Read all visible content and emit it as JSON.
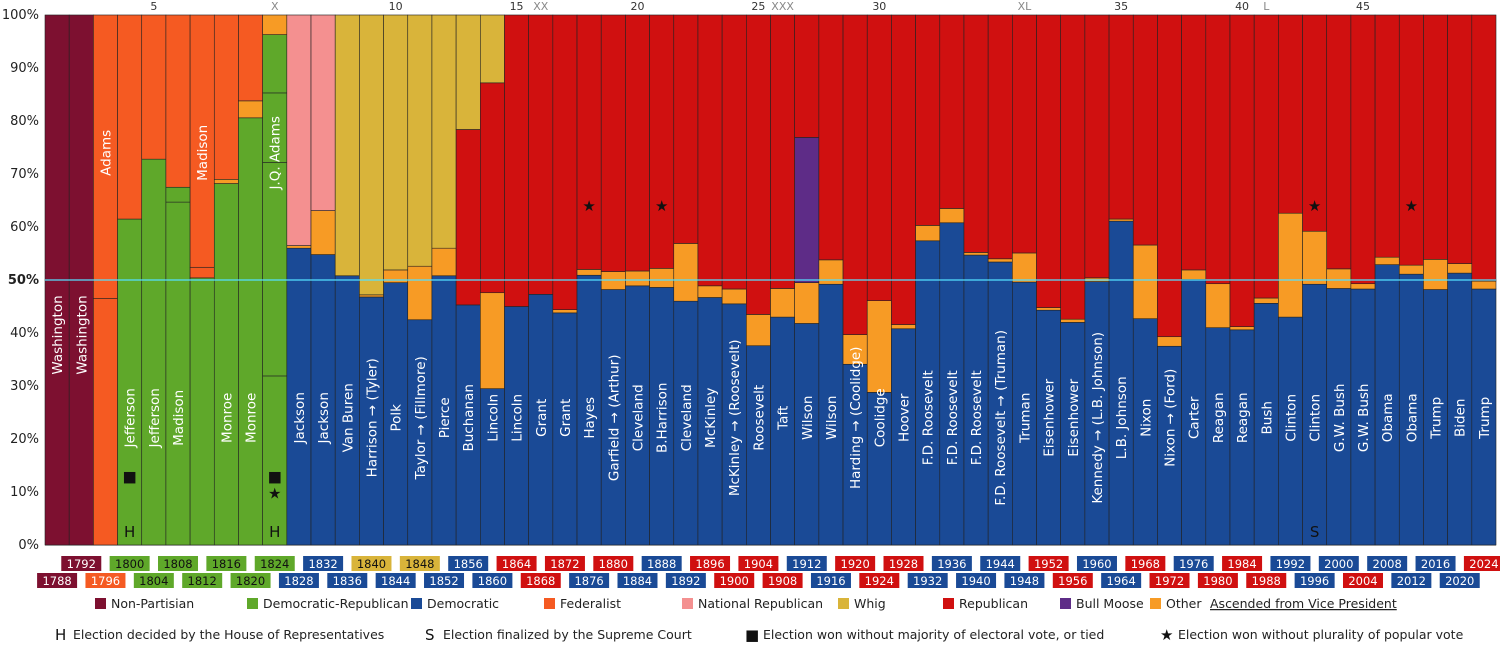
{
  "chart_data": {
    "type": "bar",
    "stacked": true,
    "ylim": [
      0,
      100
    ],
    "yticks": [
      "0%",
      "10%",
      "20%",
      "30%",
      "40%",
      "50%",
      "60%",
      "70%",
      "80%",
      "90%",
      "100%"
    ],
    "midline": 50,
    "top_labels": [
      {
        "idx": 4,
        "text": "5"
      },
      {
        "idx": 9,
        "text": "X"
      },
      {
        "idx": 14,
        "text": "10"
      },
      {
        "idx": 19,
        "text": "15"
      },
      {
        "idx": 20,
        "text": "XX"
      },
      {
        "idx": 24,
        "text": "20"
      },
      {
        "idx": 29,
        "text": "25"
      },
      {
        "idx": 30,
        "text": "XXX"
      },
      {
        "idx": 34,
        "text": "30"
      },
      {
        "idx": 40,
        "text": "XL"
      },
      {
        "idx": 44,
        "text": "35"
      },
      {
        "idx": 49,
        "text": "40"
      },
      {
        "idx": 50,
        "text": "L"
      },
      {
        "idx": 54,
        "text": "45"
      }
    ],
    "parties": {
      "NP": {
        "name": "Non-Partisian",
        "color": "#7d1030"
      },
      "DR": {
        "name": "Democratic-Republican",
        "color": "#5fa82a"
      },
      "D": {
        "name": "Democratic",
        "color": "#1a4a96"
      },
      "F": {
        "name": "Federalist",
        "color": "#f55a22"
      },
      "NR": {
        "name": "National Republican",
        "color": "#f49090"
      },
      "W": {
        "name": "Whig",
        "color": "#d9b43a"
      },
      "R": {
        "name": "Republican",
        "color": "#d01010"
      },
      "BM": {
        "name": "Bull Moose",
        "color": "#5e2c87"
      },
      "O": {
        "name": "Other",
        "color": "#f79b25"
      }
    },
    "elections": [
      {
        "year": "1788",
        "name": "Washington",
        "segments": [
          [
            "NP",
            100
          ]
        ]
      },
      {
        "year": "1792",
        "name": "Washington",
        "segments": [
          [
            "NP",
            100
          ]
        ]
      },
      {
        "year": "1796",
        "name": "Adams",
        "segments": [
          [
            "F",
            46.5
          ],
          [
            "F",
            53.5
          ]
        ]
      },
      {
        "year": "1800",
        "name": "Jefferson",
        "segments": [
          [
            "DR",
            61.5
          ],
          [
            "F",
            38.5
          ]
        ]
      },
      {
        "year": "1804",
        "name": "Jefferson",
        "segments": [
          [
            "DR",
            72.8
          ],
          [
            "F",
            27.2
          ]
        ]
      },
      {
        "year": "1808",
        "name": "Madison",
        "segments": [
          [
            "DR",
            64.7
          ],
          [
            "DR",
            2.8
          ],
          [
            "F",
            32.5
          ]
        ]
      },
      {
        "year": "1812",
        "name": "Madison",
        "segments": [
          [
            "DR",
            50.4
          ],
          [
            "F",
            2
          ],
          [
            "F",
            47.6
          ]
        ]
      },
      {
        "year": "1816",
        "name": "Monroe",
        "segments": [
          [
            "DR",
            68.2
          ],
          [
            "O",
            0.8
          ],
          [
            "F",
            31
          ]
        ]
      },
      {
        "year": "1820",
        "name": "Monroe",
        "segments": [
          [
            "DR",
            80.6
          ],
          [
            "O",
            3.2
          ],
          [
            "F",
            16.2
          ]
        ]
      },
      {
        "year": "1824",
        "name": "J.Q. Adams",
        "segments": [
          [
            "DR",
            31.9
          ],
          [
            "DR",
            40.3
          ],
          [
            "DR",
            13.1
          ],
          [
            "DR",
            11
          ],
          [
            "O",
            3.7
          ]
        ]
      },
      {
        "year": "1828",
        "name": "Jackson",
        "segments": [
          [
            "D",
            56
          ],
          [
            "O",
            0.5
          ],
          [
            "NR",
            43.5
          ]
        ]
      },
      {
        "year": "1832",
        "name": "Jackson",
        "segments": [
          [
            "D",
            54.8
          ],
          [
            "O",
            8.3
          ],
          [
            "NR",
            36.9
          ]
        ]
      },
      {
        "year": "1836",
        "name": "Van Buren",
        "segments": [
          [
            "D",
            50.8
          ],
          [
            "W",
            49.2
          ]
        ]
      },
      {
        "year": "1840",
        "name": "Harrison → (Tyler)",
        "segments": [
          [
            "D",
            46.8
          ],
          [
            "O",
            0.4
          ],
          [
            "W",
            52.8
          ]
        ]
      },
      {
        "year": "1844",
        "name": "Polk",
        "segments": [
          [
            "D",
            49.5
          ],
          [
            "O",
            2.4
          ],
          [
            "W",
            48.1
          ]
        ]
      },
      {
        "year": "1848",
        "name": "Taylor → (Fillmore)",
        "segments": [
          [
            "D",
            42.5
          ],
          [
            "O",
            10.1
          ],
          [
            "W",
            47.4
          ]
        ]
      },
      {
        "year": "1852",
        "name": "Pierce",
        "segments": [
          [
            "D",
            50.8
          ],
          [
            "O",
            5.2
          ],
          [
            "W",
            44
          ]
        ]
      },
      {
        "year": "1856",
        "name": "Buchanan",
        "segments": [
          [
            "D",
            45.3
          ],
          [
            "R",
            33.1
          ],
          [
            "W",
            21.6
          ]
        ]
      },
      {
        "year": "1860",
        "name": "Lincoln",
        "segments": [
          [
            "D",
            29.5
          ],
          [
            "O",
            18.1
          ],
          [
            "R",
            39.6
          ],
          [
            "W",
            12.8
          ]
        ]
      },
      {
        "year": "1864",
        "name": "Lincoln",
        "segments": [
          [
            "D",
            45
          ],
          [
            "R",
            55
          ]
        ]
      },
      {
        "year": "1868",
        "name": "Grant",
        "segments": [
          [
            "D",
            47.3
          ],
          [
            "R",
            52.7
          ]
        ]
      },
      {
        "year": "1872",
        "name": "Grant",
        "segments": [
          [
            "D",
            43.8
          ],
          [
            "O",
            0.6
          ],
          [
            "R",
            55.6
          ]
        ]
      },
      {
        "year": "1876",
        "name": "Hayes",
        "segments": [
          [
            "D",
            50.9
          ],
          [
            "O",
            1.1
          ],
          [
            "R",
            48
          ]
        ]
      },
      {
        "year": "1880",
        "name": "Garfield → (Arthur)",
        "segments": [
          [
            "D",
            48.2
          ],
          [
            "O",
            3.4
          ],
          [
            "R",
            48.4
          ]
        ]
      },
      {
        "year": "1884",
        "name": "Cleveland",
        "segments": [
          [
            "D",
            48.9
          ],
          [
            "O",
            2.8
          ],
          [
            "R",
            48.3
          ]
        ]
      },
      {
        "year": "1888",
        "name": "B.Harrison",
        "segments": [
          [
            "D",
            48.6
          ],
          [
            "O",
            3.6
          ],
          [
            "R",
            47.8
          ]
        ]
      },
      {
        "year": "1892",
        "name": "Cleveland",
        "segments": [
          [
            "D",
            46
          ],
          [
            "O",
            10.9
          ],
          [
            "R",
            43.1
          ]
        ]
      },
      {
        "year": "1896",
        "name": "McKinley",
        "segments": [
          [
            "D",
            46.7
          ],
          [
            "O",
            2.2
          ],
          [
            "R",
            51.1
          ]
        ]
      },
      {
        "year": "1900",
        "name": "McKinley → (Roosevelt)",
        "segments": [
          [
            "D",
            45.5
          ],
          [
            "O",
            2.8
          ],
          [
            "R",
            51.7
          ]
        ]
      },
      {
        "year": "1904",
        "name": "Roosevelt",
        "segments": [
          [
            "D",
            37.6
          ],
          [
            "O",
            5.9
          ],
          [
            "R",
            56.5
          ]
        ]
      },
      {
        "year": "1908",
        "name": "Taft",
        "segments": [
          [
            "D",
            43
          ],
          [
            "O",
            5.4
          ],
          [
            "R",
            51.6
          ]
        ]
      },
      {
        "year": "1912",
        "name": "Wilson",
        "segments": [
          [
            "D",
            41.8
          ],
          [
            "O",
            7.7
          ],
          [
            "BM",
            27.4
          ],
          [
            "R",
            23.1
          ]
        ]
      },
      {
        "year": "1916",
        "name": "Wilson",
        "segments": [
          [
            "D",
            49.2
          ],
          [
            "O",
            4.6
          ],
          [
            "R",
            46.2
          ]
        ]
      },
      {
        "year": "1920",
        "name": "Harding → (Coolidge)",
        "segments": [
          [
            "D",
            34.1
          ],
          [
            "O",
            5.6
          ],
          [
            "R",
            60.3
          ]
        ]
      },
      {
        "year": "1924",
        "name": "Coolidge",
        "segments": [
          [
            "D",
            28.8
          ],
          [
            "O",
            17.3
          ],
          [
            "R",
            53.9
          ]
        ]
      },
      {
        "year": "1928",
        "name": "Hoover",
        "segments": [
          [
            "D",
            40.8
          ],
          [
            "O",
            0.8
          ],
          [
            "R",
            58.4
          ]
        ]
      },
      {
        "year": "1932",
        "name": "F.D. Roosevelt",
        "segments": [
          [
            "D",
            57.4
          ],
          [
            "O",
            2.9
          ],
          [
            "R",
            39.7
          ]
        ]
      },
      {
        "year": "1936",
        "name": "F.D. Roosevelt",
        "segments": [
          [
            "D",
            60.8
          ],
          [
            "O",
            2.7
          ],
          [
            "R",
            36.5
          ]
        ]
      },
      {
        "year": "1940",
        "name": "F.D. Roosevelt",
        "segments": [
          [
            "D",
            54.7
          ],
          [
            "O",
            0.5
          ],
          [
            "R",
            44.8
          ]
        ]
      },
      {
        "year": "1944",
        "name": "F.D. Roosevelt → (Truman)",
        "segments": [
          [
            "D",
            53.4
          ],
          [
            "O",
            0.6
          ],
          [
            "R",
            46
          ]
        ]
      },
      {
        "year": "1948",
        "name": "Truman",
        "segments": [
          [
            "D",
            49.6
          ],
          [
            "O",
            5.5
          ],
          [
            "R",
            44.9
          ]
        ]
      },
      {
        "year": "1952",
        "name": "Eisenhower",
        "segments": [
          [
            "D",
            44.3
          ],
          [
            "O",
            0.5
          ],
          [
            "R",
            55.2
          ]
        ]
      },
      {
        "year": "1956",
        "name": "Eisenhower",
        "segments": [
          [
            "D",
            42
          ],
          [
            "O",
            0.6
          ],
          [
            "R",
            57.4
          ]
        ]
      },
      {
        "year": "1960",
        "name": "Kennedy → (L.B. Johnson)",
        "segments": [
          [
            "D",
            49.7
          ],
          [
            "O",
            0.7
          ],
          [
            "R",
            49.6
          ]
        ]
      },
      {
        "year": "1964",
        "name": "L.B. Johnson",
        "segments": [
          [
            "D",
            61.1
          ],
          [
            "O",
            0.4
          ],
          [
            "R",
            38.5
          ]
        ]
      },
      {
        "year": "1968",
        "name": "Nixon",
        "segments": [
          [
            "D",
            42.7
          ],
          [
            "O",
            13.9
          ],
          [
            "R",
            43.4
          ]
        ]
      },
      {
        "year": "1972",
        "name": "Nixon → (Ford)",
        "segments": [
          [
            "D",
            37.5
          ],
          [
            "O",
            1.8
          ],
          [
            "R",
            60.7
          ]
        ]
      },
      {
        "year": "1976",
        "name": "Carter",
        "segments": [
          [
            "D",
            50.1
          ],
          [
            "O",
            1.8
          ],
          [
            "R",
            48.1
          ]
        ]
      },
      {
        "year": "1980",
        "name": "Reagan",
        "segments": [
          [
            "D",
            41
          ],
          [
            "O",
            8.3
          ],
          [
            "R",
            50.7
          ]
        ]
      },
      {
        "year": "1984",
        "name": "Reagan",
        "segments": [
          [
            "D",
            40.6
          ],
          [
            "O",
            0.6
          ],
          [
            "R",
            58.8
          ]
        ]
      },
      {
        "year": "1988",
        "name": "Bush",
        "segments": [
          [
            "D",
            45.6
          ],
          [
            "O",
            1
          ],
          [
            "R",
            53.4
          ]
        ]
      },
      {
        "year": "1992",
        "name": "Clinton",
        "segments": [
          [
            "D",
            43
          ],
          [
            "O",
            19.6
          ],
          [
            "R",
            37.4
          ]
        ]
      },
      {
        "year": "1996",
        "name": "Clinton",
        "segments": [
          [
            "D",
            49.2
          ],
          [
            "O",
            10
          ],
          [
            "R",
            40.8
          ]
        ]
      },
      {
        "year": "2000",
        "name": "G.W. Bush",
        "segments": [
          [
            "D",
            48.4
          ],
          [
            "O",
            3.7
          ],
          [
            "R",
            47.9
          ]
        ]
      },
      {
        "year": "2004",
        "name": "G.W. Bush",
        "segments": [
          [
            "D",
            48.3
          ],
          [
            "O",
            1
          ],
          [
            "R",
            50.7
          ]
        ]
      },
      {
        "year": "2008",
        "name": "Obama",
        "segments": [
          [
            "D",
            52.9
          ],
          [
            "O",
            1.4
          ],
          [
            "R",
            45.7
          ]
        ]
      },
      {
        "year": "2012",
        "name": "Obama",
        "segments": [
          [
            "D",
            51.1
          ],
          [
            "O",
            1.7
          ],
          [
            "R",
            47.2
          ]
        ]
      },
      {
        "year": "2016",
        "name": "Trump",
        "segments": [
          [
            "D",
            48.2
          ],
          [
            "O",
            5.7
          ],
          [
            "R",
            46.1
          ]
        ]
      },
      {
        "year": "2020",
        "name": "Biden",
        "segments": [
          [
            "D",
            51.3
          ],
          [
            "O",
            1.8
          ],
          [
            "R",
            46.9
          ]
        ]
      },
      {
        "year": "2024",
        "name": "Trump",
        "segments": [
          [
            "D",
            48.3
          ],
          [
            "O",
            1.5
          ],
          [
            "R",
            50.2
          ]
        ]
      }
    ],
    "markers": [
      {
        "idx": 3,
        "glyphs": [
          "■",
          "H"
        ]
      },
      {
        "idx": 9,
        "glyphs": [
          "■",
          "★",
          "H"
        ]
      },
      {
        "idx": 22,
        "glyphs": [
          "★"
        ]
      },
      {
        "idx": 25,
        "glyphs": [
          "★"
        ]
      },
      {
        "idx": 52,
        "glyphs": [
          "★",
          "S"
        ]
      },
      {
        "idx": 56,
        "glyphs": [
          "★"
        ]
      }
    ],
    "legend": [
      {
        "key": "NP",
        "label": "Non-Partisian"
      },
      {
        "key": "DR",
        "label": "Democratic-Republican"
      },
      {
        "key": "D",
        "label": "Democratic"
      },
      {
        "key": "F",
        "label": "Federalist"
      },
      {
        "key": "NR",
        "label": "National Republican"
      },
      {
        "key": "W",
        "label": "Whig"
      },
      {
        "key": "R",
        "label": "Republican"
      },
      {
        "key": "BM",
        "label": "Bull Moose"
      },
      {
        "key": "O",
        "label": "Other"
      }
    ],
    "legend_note": "Ascended from Vice President",
    "notes": [
      {
        "symbol": "H",
        "text": "Election decided by the House of Representatives"
      },
      {
        "symbol": "S",
        "text": "Election finalized by the Supreme Court"
      },
      {
        "symbol": "■",
        "text": "Election won without majority of electoral vote, or tied"
      },
      {
        "symbol": "★",
        "text": "Election won without plurality of popular vote"
      }
    ]
  }
}
